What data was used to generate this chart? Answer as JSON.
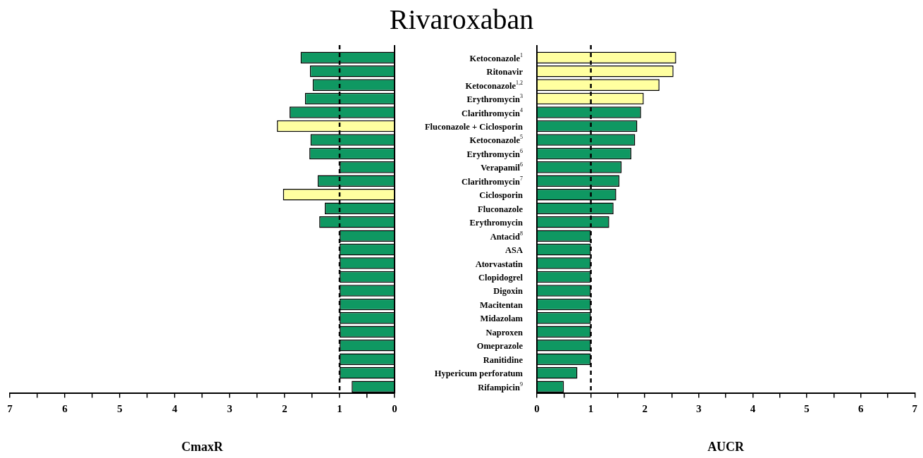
{
  "chart_data": [
    {
      "type": "bar",
      "title": "Rivaroxaban",
      "orientation": "horizontal",
      "xlabel": "CmaxR",
      "tick_labels": "x",
      "categories": [
        null,
        null,
        null,
        null,
        null,
        null,
        null,
        null,
        null,
        null,
        null,
        null,
        null,
        null,
        null,
        null,
        null,
        null,
        null,
        null,
        null,
        null,
        null,
        null,
        null
      ],
      "values": [
        1.71,
        1.54,
        1.49,
        1.63,
        1.91,
        2.14,
        1.53,
        1.55,
        1.0,
        1.4,
        2.03,
        1.27,
        1.37,
        1.0,
        1.0,
        1.0,
        1.0,
        1.0,
        1.0,
        1.0,
        1.0,
        1.0,
        1.0,
        1.0,
        0.78
      ],
      "colors": [
        "#0f9862",
        "#0f9862",
        "#0f9862",
        "#0f9862",
        "#0f9862",
        "#ffffa0",
        "#0f9862",
        "#0f9862",
        "#0f9862",
        "#0f9862",
        "#ffffa0",
        "#0f9862",
        "#0f9862",
        "#0f9862",
        "#0f9862",
        "#0f9862",
        "#0f9862",
        "#0f9862",
        "#0f9862",
        "#0f9862",
        "#0f9862",
        "#0f9862",
        "#0f9862",
        "#0f9862",
        "#0f9862"
      ],
      "xlim": [
        7,
        0
      ],
      "xticks": [
        7,
        {
          "value": 6.5,
          "label": null
        },
        6,
        {
          "value": 5.5,
          "label": null
        },
        5,
        {
          "value": 4.5,
          "label": null
        },
        4,
        {
          "value": 3.5,
          "label": null
        },
        3,
        {
          "value": 2.5,
          "label": null
        },
        2,
        {
          "value": 1.5,
          "label": null
        },
        1,
        {
          "value": 0.5,
          "label": null
        },
        0
      ],
      "ref_lines": [
        {
          "axis": "x",
          "value": 1,
          "line_style": "dashed",
          "color": "#000000"
        }
      ],
      "grid": false,
      "legend": false
    },
    {
      "type": "bar",
      "orientation": "horizontal",
      "xlabel": "AUCR",
      "categories": [
        "Ketoconazole$^{1}$",
        "Ritonavir",
        "Ketoconazole$^{1,2}$",
        "Erythromycin$^{3}$",
        "Clarithromycin$^{4}$",
        "Fluconazole + Ciclosporin",
        "Ketoconazole$^{5}$",
        "Erythromycin$^{6}$",
        "Verapamil$^{6}$",
        "Clarithromycin$^{7}$",
        "Ciclosporin",
        "Fluconazole",
        "Erythromycin",
        "Antacid$^{8}$",
        "ASA",
        "Atorvastatin",
        "Clopidogrel",
        "Digoxin",
        "Macitentan",
        "Midazolam",
        "Naproxen",
        "Omeprazole",
        "Ranitidine",
        "Hypericum perforatum",
        "Rifampicin$^{9}$"
      ],
      "values": [
        2.58,
        2.53,
        2.27,
        1.98,
        1.93,
        1.86,
        1.82,
        1.75,
        1.57,
        1.53,
        1.47,
        1.42,
        1.34,
        1.0,
        1.0,
        1.0,
        1.0,
        1.0,
        1.0,
        1.0,
        1.0,
        1.0,
        1.0,
        0.75,
        0.5
      ],
      "colors": [
        "#ffffa0",
        "#ffffa0",
        "#ffffa0",
        "#ffffa0",
        "#0f9862",
        "#0f9862",
        "#0f9862",
        "#0f9862",
        "#0f9862",
        "#0f9862",
        "#0f9862",
        "#0f9862",
        "#0f9862",
        "#0f9862",
        "#0f9862",
        "#0f9862",
        "#0f9862",
        "#0f9862",
        "#0f9862",
        "#0f9862",
        "#0f9862",
        "#0f9862",
        "#0f9862",
        "#0f9862",
        "#0f9862"
      ],
      "xlim": [
        0,
        7
      ],
      "xticks": [
        0,
        {
          "value": 0.5,
          "label": null
        },
        1,
        {
          "value": 1.5,
          "label": null
        },
        2,
        {
          "value": 2.5,
          "label": null
        },
        3,
        {
          "value": 3.5,
          "label": null
        },
        4,
        {
          "value": 4.5,
          "label": null
        },
        5,
        {
          "value": 5.5,
          "label": null
        },
        6,
        {
          "value": 6.5,
          "label": null
        },
        7
      ],
      "ref_lines": [
        {
          "axis": "x",
          "value": 1,
          "line_style": "dashed",
          "color": "#000000"
        }
      ],
      "grid": false,
      "legend": false
    }
  ]
}
